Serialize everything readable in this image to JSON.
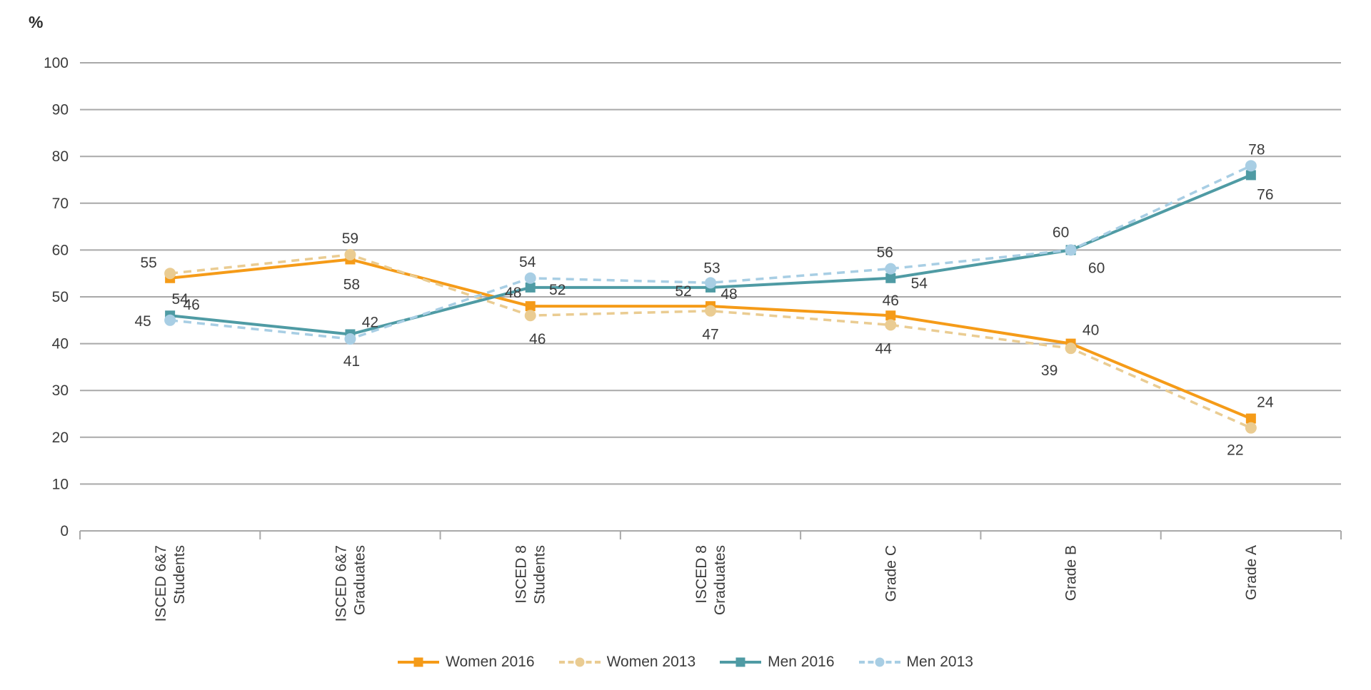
{
  "chart_data": {
    "type": "line",
    "title": "",
    "ylabel": "%",
    "xlabel": "",
    "ylim": [
      0,
      100
    ],
    "yticks": [
      0,
      10,
      20,
      30,
      40,
      50,
      60,
      70,
      80,
      90,
      100
    ],
    "grid": true,
    "legend_position": "bottom",
    "categories": [
      [
        "ISCED 6&7",
        "Students"
      ],
      [
        "ISCED 6&7",
        "Graduates"
      ],
      [
        "ISCED 8",
        "Students"
      ],
      [
        "ISCED 8",
        "Graduates"
      ],
      [
        "Grade C"
      ],
      [
        "Grade B"
      ],
      [
        "Grade A"
      ]
    ],
    "series": [
      {
        "name": "Women 2016",
        "color": "#F59B18",
        "line_style": "solid",
        "marker": "square",
        "values": [
          54,
          58,
          48,
          48,
          46,
          40,
          24
        ]
      },
      {
        "name": "Women 2013",
        "color": "#EACC92",
        "line_style": "dashed",
        "marker": "circle",
        "values": [
          55,
          59,
          46,
          47,
          44,
          39,
          22
        ]
      },
      {
        "name": "Men 2016",
        "color": "#4F9BA4",
        "line_style": "solid",
        "marker": "square",
        "values": [
          46,
          42,
          52,
          52,
          54,
          60,
          76
        ]
      },
      {
        "name": "Men 2013",
        "color": "#A8CEE4",
        "line_style": "dashed",
        "marker": "circle",
        "values": [
          45,
          41,
          54,
          53,
          56,
          60,
          78
        ]
      }
    ],
    "colors": {
      "gridline": "#A9A9A9",
      "axis_text": "#3C3C3C",
      "data_label": "#3C3C3C"
    }
  }
}
